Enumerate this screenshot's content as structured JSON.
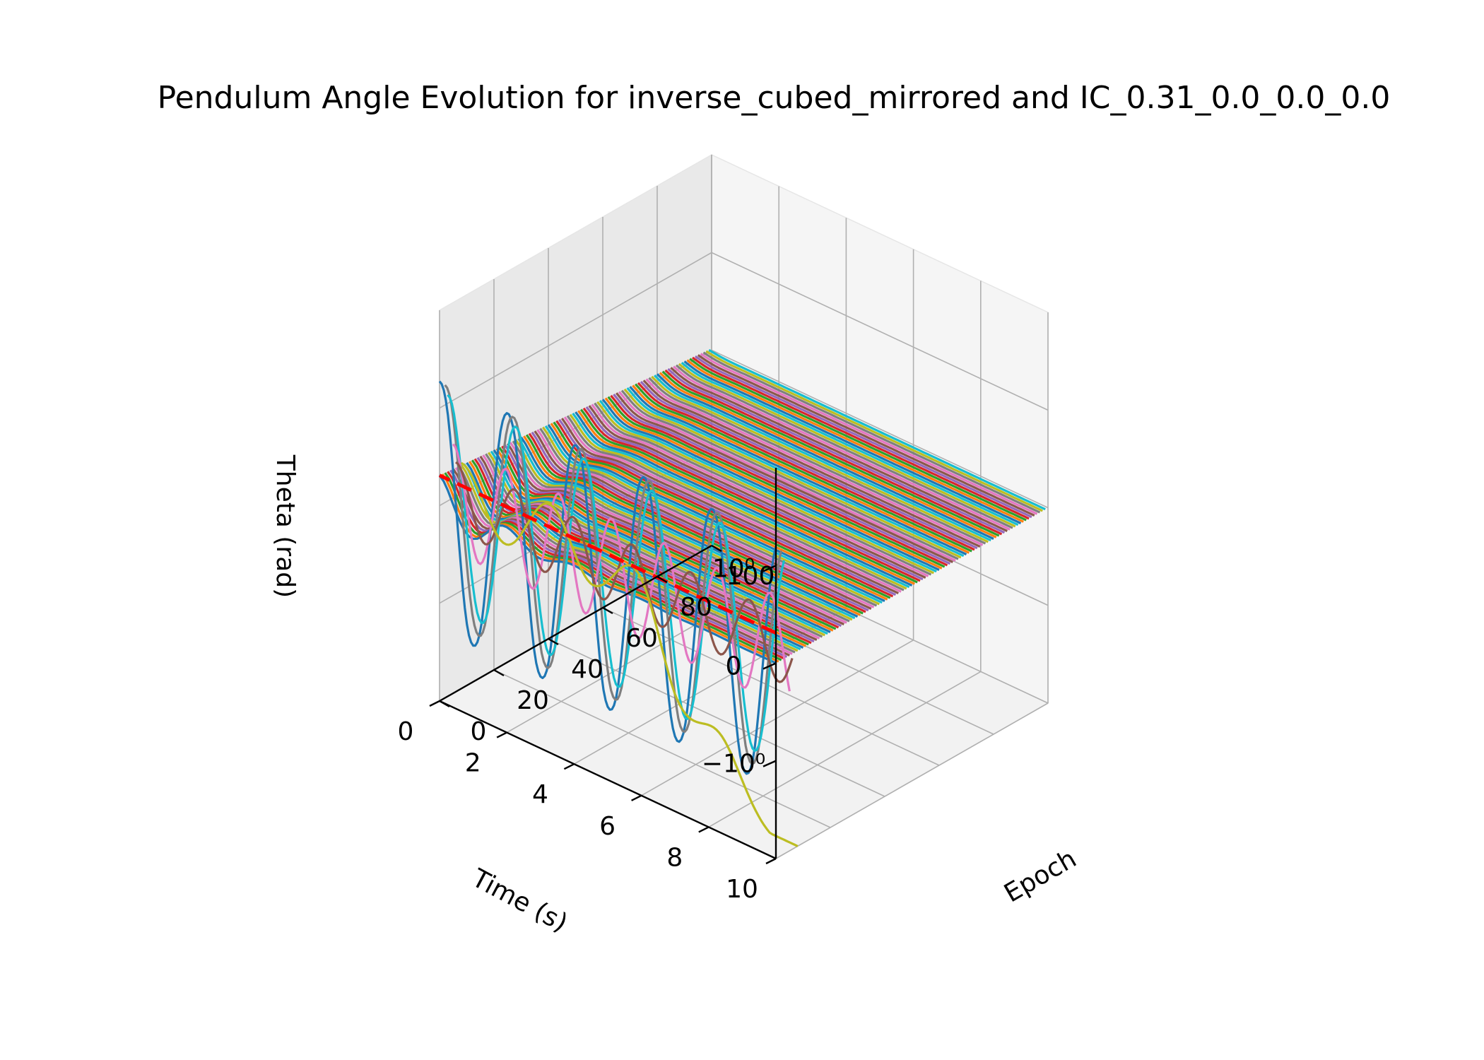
{
  "chart_data": {
    "type": "line",
    "projection": "3d",
    "title": "Pendulum Angle Evolution for inverse_cubed_mirrored and IC_0.31_0.0_0.0_0.0",
    "xlabel": "Time (s)",
    "ylabel": "Epoch",
    "zlabel": "Theta (rad)",
    "x_ticks": [
      "0",
      "2",
      "4",
      "6",
      "8",
      "10"
    ],
    "y_ticks": [
      "0",
      "20",
      "40",
      "60",
      "80",
      "100"
    ],
    "z_ticks": [
      "−10⁰",
      "0",
      "10⁰"
    ],
    "z_scale": "symlog",
    "xlim": [
      0,
      10
    ],
    "ylim": [
      0,
      100
    ],
    "zlim": [
      -3,
      3
    ],
    "grid": true,
    "epochs": 100,
    "initial_angle": 0.31,
    "reference_line": {
      "style": "dashed",
      "color": "#ff0000",
      "value": 0.31
    },
    "series_colors": [
      "#1f77b4",
      "#ff7f0e",
      "#2ca02c",
      "#d62728",
      "#9467bd",
      "#8c564b",
      "#e377c2",
      "#7f7f7f",
      "#bcbd22",
      "#17becf"
    ],
    "trajectories": [
      {
        "epoch": 0,
        "amplitude": 1.35,
        "frequency_rad_s": 3.1,
        "color": "#1f77b4"
      },
      {
        "epoch": 2,
        "amplitude": 1.25,
        "frequency_rad_s": 3.1,
        "color": "#7f7f7f"
      },
      {
        "epoch": 3,
        "amplitude": 1.1,
        "frequency_rad_s": 3.1,
        "color": "#17becf"
      },
      {
        "epoch": 5,
        "amplitude": 0.55,
        "frequency_rad_s": 4.0,
        "color": "#e377c2"
      },
      {
        "epoch": 6,
        "amplitude": 0.35,
        "frequency_rad_s": 3.6,
        "color": "#8c564b"
      },
      {
        "epoch": 8,
        "diverges_to": -3.0,
        "color": "#bcbd22"
      }
    ],
    "decay_envelope": {
      "start_amplitude": 0.31,
      "late_epoch_value": 0.0
    }
  }
}
